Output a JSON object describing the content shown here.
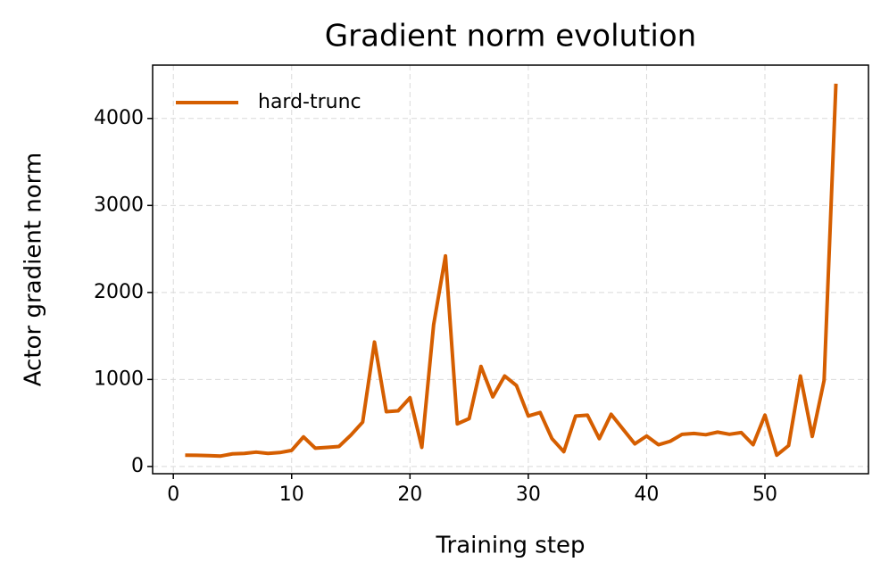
{
  "chart_data": {
    "type": "line",
    "title": "Gradient norm evolution",
    "x_label": "Training step",
    "y_label": "Actor gradient norm",
    "x": [
      1,
      2,
      3,
      4,
      5,
      6,
      7,
      8,
      9,
      10,
      11,
      12,
      13,
      14,
      15,
      16,
      17,
      18,
      19,
      20,
      21,
      22,
      23,
      24,
      25,
      26,
      27,
      28,
      29,
      30,
      31,
      32,
      33,
      34,
      35,
      36,
      37,
      38,
      39,
      40,
      41,
      42,
      43,
      44,
      45,
      46,
      47,
      48,
      49,
      50,
      51,
      52,
      53,
      54,
      55,
      56
    ],
    "series": [
      {
        "name": "hard-trunc",
        "color": "#d55e00",
        "values": [
          130,
          128,
          125,
          120,
          145,
          150,
          165,
          150,
          160,
          185,
          340,
          210,
          220,
          230,
          360,
          510,
          1430,
          630,
          640,
          790,
          220,
          1630,
          2420,
          490,
          550,
          1150,
          800,
          1040,
          930,
          580,
          620,
          320,
          170,
          580,
          590,
          320,
          600,
          430,
          260,
          350,
          250,
          290,
          370,
          380,
          365,
          395,
          370,
          390,
          250,
          590,
          130,
          240,
          1040,
          345,
          990,
          4400
        ]
      }
    ],
    "xlim": [
      -1.75,
      58.75
    ],
    "xticks": [
      0,
      10,
      20,
      30,
      40,
      50
    ],
    "ylim": [
      -83,
      4613
    ],
    "yticks": [
      0,
      1000,
      2000,
      3000,
      4000
    ],
    "grid": true,
    "legend": "upper left"
  }
}
